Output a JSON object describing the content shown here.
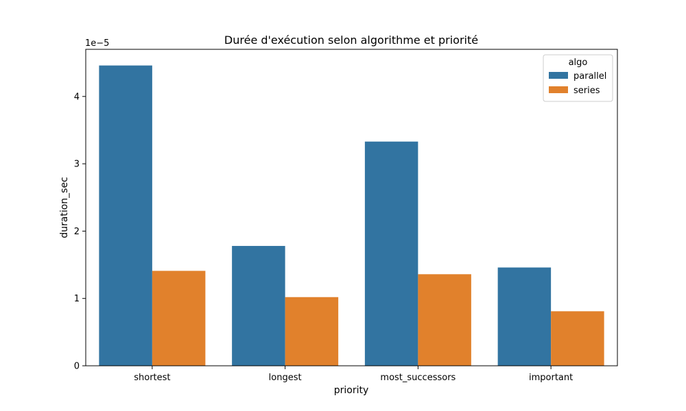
{
  "chart_data": {
    "type": "bar",
    "title": "Durée d'exécution selon algorithme et priorité",
    "xlabel": "priority",
    "ylabel": "duration_sec",
    "y_offset_text": "1e−5",
    "categories": [
      "shortest",
      "longest",
      "most_successors",
      "important"
    ],
    "series": [
      {
        "name": "parallel",
        "color": "#3274a1",
        "values": [
          4.46e-05,
          1.78e-05,
          3.33e-05,
          1.46e-05
        ]
      },
      {
        "name": "series",
        "color": "#e1812c",
        "values": [
          1.41e-05,
          1.02e-05,
          1.36e-05,
          8.1e-06
        ]
      }
    ],
    "ylim": [
      0,
      4.7e-05
    ],
    "yticks": [
      0,
      1e-05,
      2e-05,
      3e-05,
      4e-05
    ],
    "ytick_labels": [
      "0",
      "1",
      "2",
      "3",
      "4"
    ],
    "legend": {
      "title": "algo",
      "position": "top-right"
    },
    "grid": false
  }
}
